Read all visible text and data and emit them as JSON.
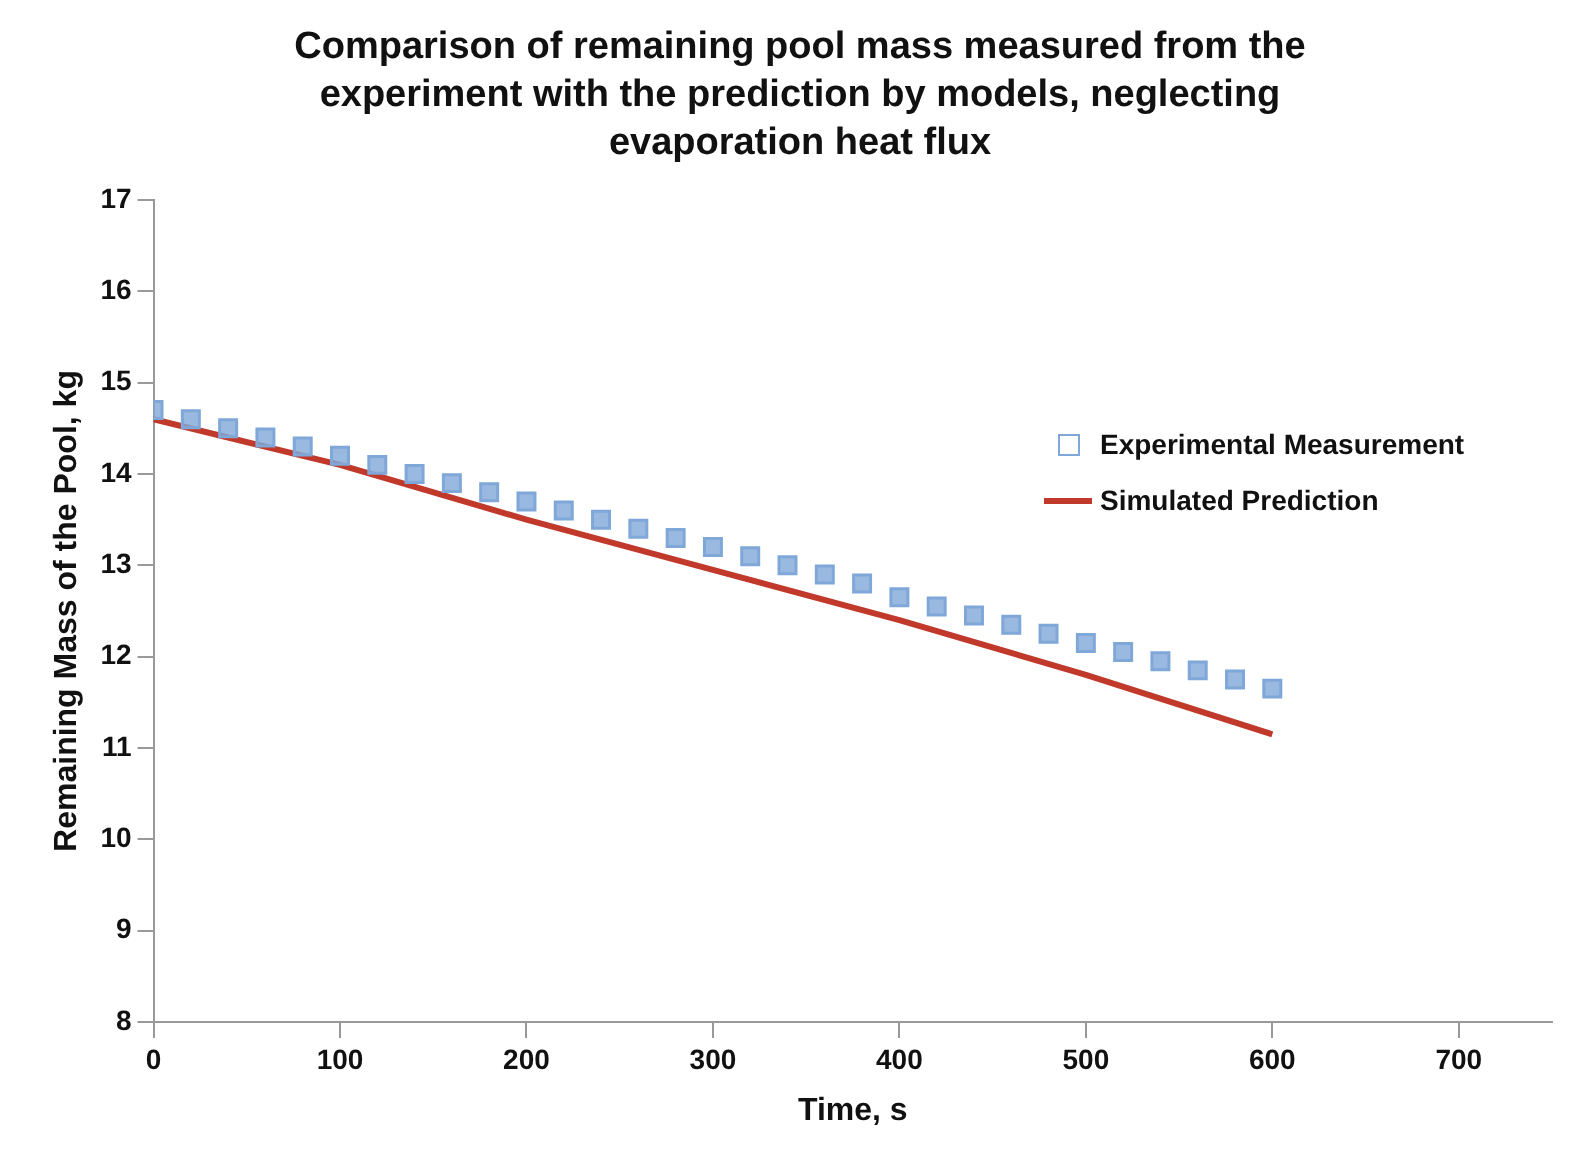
{
  "chart_data": {
    "type": "scatter",
    "title": "Comparison of remaining pool mass measured from the experiment with the prediction by models, neglecting evaporation heat flux",
    "xlabel": "Time, s",
    "ylabel": "Remaining Mass of the Pool, kg",
    "xlim": [
      0,
      750
    ],
    "xticks": [
      0,
      100,
      200,
      300,
      400,
      500,
      600,
      700
    ],
    "ylim": [
      8,
      17
    ],
    "yticks": [
      8,
      9,
      10,
      11,
      12,
      13,
      14,
      15,
      16,
      17
    ],
    "grid": false,
    "legend": "right",
    "series": [
      {
        "name": "Experimental Measurement",
        "marker": "square",
        "color": "#7fa7d8",
        "x": [
          0,
          20,
          40,
          60,
          80,
          100,
          120,
          140,
          160,
          180,
          200,
          220,
          240,
          260,
          280,
          300,
          320,
          340,
          360,
          380,
          400,
          420,
          440,
          460,
          480,
          500,
          520,
          540,
          560,
          580,
          600
        ],
        "values": [
          14.7,
          14.6,
          14.5,
          14.4,
          14.3,
          14.2,
          14.1,
          14.0,
          13.9,
          13.8,
          13.7,
          13.6,
          13.5,
          13.4,
          13.3,
          13.2,
          13.1,
          13.0,
          12.9,
          12.8,
          12.65,
          12.55,
          12.45,
          12.35,
          12.25,
          12.15,
          12.05,
          11.95,
          11.85,
          11.75,
          11.65
        ]
      },
      {
        "name": "Simulated Prediction",
        "type": "line",
        "marker": "none",
        "color": "#c0392b",
        "x": [
          0,
          100,
          200,
          300,
          400,
          500,
          600
        ],
        "values": [
          14.6,
          14.1,
          13.5,
          12.95,
          12.4,
          11.8,
          11.15
        ]
      }
    ]
  }
}
